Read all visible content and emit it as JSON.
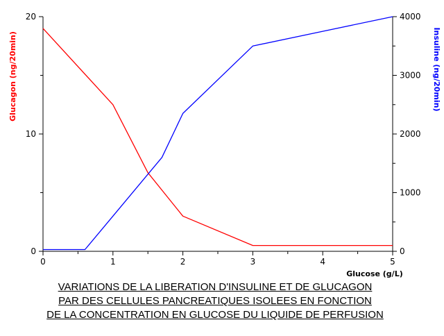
{
  "chart_data": {
    "type": "line",
    "title": "",
    "caption_lines": [
      "VARIATIONS DE LA LIBERATION D'INSULINE ET DE GLUCAGON",
      "PAR DES CELLULES PANCREATIQUES ISOLEES EN FONCTION",
      "DE LA CONCENTRATION EN GLUCOSE DU LIQUIDE DE PERFUSION"
    ],
    "xlabel": "Glucose (g/L)",
    "xlim": [
      0,
      5
    ],
    "x_ticks": [
      "0",
      "1",
      "2",
      "3",
      "4",
      "5"
    ],
    "y_left": {
      "label": "Glucagon (ng/20min)",
      "lim": [
        0,
        20
      ],
      "ticks": [
        "0",
        "10",
        "20"
      ],
      "color": "#ff0000"
    },
    "y_right": {
      "label": "Insuline (ng/20min)",
      "lim": [
        0,
        4000
      ],
      "ticks": [
        "0",
        "1000",
        "2000",
        "3000",
        "4000"
      ],
      "color": "#0000ff"
    },
    "grid": false,
    "legend": "none",
    "series": [
      {
        "axis": "left",
        "color": "#ff0000",
        "points": [
          [
            0,
            19
          ],
          [
            1,
            12.5
          ],
          [
            1.5,
            6.7
          ],
          [
            2,
            3
          ],
          [
            3,
            0.5
          ],
          [
            4,
            0.5
          ],
          [
            5,
            0.5
          ]
        ]
      },
      {
        "axis": "right",
        "color": "#0000ff",
        "points": [
          [
            0,
            30
          ],
          [
            0.6,
            30
          ],
          [
            1,
            600
          ],
          [
            1.7,
            1600
          ],
          [
            2,
            2350
          ],
          [
            3,
            3500
          ],
          [
            4,
            3750
          ],
          [
            5,
            4000
          ]
        ]
      }
    ]
  }
}
